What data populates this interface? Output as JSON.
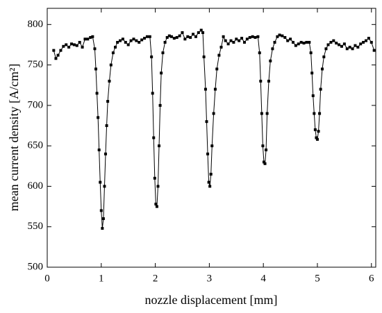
{
  "chart_data": {
    "type": "scatter-line",
    "x_label": "nozzle displacement [mm]",
    "y_label": "mean current density [A/cm²]",
    "xlim": [
      0,
      6.08
    ],
    "xticks": [
      0,
      1,
      2,
      3,
      4,
      5,
      6
    ],
    "ylim": [
      500,
      820
    ],
    "yticks": [
      500,
      550,
      600,
      650,
      700,
      750,
      800
    ],
    "color": "#000000",
    "x": [
      0.12,
      0.16,
      0.2,
      0.25,
      0.3,
      0.35,
      0.4,
      0.45,
      0.5,
      0.55,
      0.6,
      0.65,
      0.7,
      0.75,
      0.8,
      0.84,
      0.88,
      0.9,
      0.92,
      0.94,
      0.96,
      0.98,
      1.0,
      1.02,
      1.04,
      1.06,
      1.08,
      1.1,
      1.12,
      1.15,
      1.18,
      1.22,
      1.26,
      1.3,
      1.35,
      1.4,
      1.45,
      1.5,
      1.55,
      1.6,
      1.65,
      1.7,
      1.75,
      1.8,
      1.85,
      1.9,
      1.93,
      1.95,
      1.97,
      1.99,
      2.01,
      2.03,
      2.05,
      2.07,
      2.09,
      2.11,
      2.14,
      2.18,
      2.22,
      2.26,
      2.3,
      2.35,
      2.4,
      2.45,
      2.5,
      2.55,
      2.6,
      2.65,
      2.7,
      2.75,
      2.8,
      2.85,
      2.88,
      2.9,
      2.93,
      2.95,
      2.97,
      2.99,
      3.01,
      3.03,
      3.05,
      3.08,
      3.11,
      3.14,
      3.18,
      3.22,
      3.26,
      3.3,
      3.35,
      3.4,
      3.45,
      3.5,
      3.55,
      3.6,
      3.65,
      3.7,
      3.75,
      3.8,
      3.85,
      3.9,
      3.93,
      3.95,
      3.97,
      3.99,
      4.01,
      4.03,
      4.05,
      4.07,
      4.1,
      4.13,
      4.17,
      4.21,
      4.26,
      4.3,
      4.35,
      4.4,
      4.45,
      4.5,
      4.55,
      4.6,
      4.65,
      4.7,
      4.75,
      4.8,
      4.85,
      4.88,
      4.9,
      4.92,
      4.94,
      4.96,
      4.98,
      5.0,
      5.02,
      5.04,
      5.06,
      5.09,
      5.12,
      5.16,
      5.2,
      5.25,
      5.3,
      5.35,
      5.4,
      5.45,
      5.5,
      5.55,
      5.6,
      5.65,
      5.7,
      5.75,
      5.8,
      5.85,
      5.9,
      5.95,
      6.0,
      6.05
    ],
    "values": [
      768,
      758,
      762,
      768,
      773,
      775,
      772,
      776,
      775,
      774,
      778,
      772,
      782,
      782,
      784,
      785,
      770,
      745,
      715,
      685,
      645,
      605,
      570,
      548,
      560,
      600,
      640,
      675,
      705,
      730,
      750,
      765,
      772,
      778,
      780,
      782,
      778,
      775,
      780,
      782,
      780,
      778,
      781,
      783,
      785,
      785,
      760,
      715,
      660,
      610,
      578,
      575,
      600,
      650,
      700,
      740,
      765,
      778,
      784,
      786,
      785,
      783,
      784,
      786,
      790,
      782,
      785,
      784,
      788,
      785,
      790,
      793,
      790,
      760,
      720,
      680,
      640,
      605,
      600,
      615,
      650,
      690,
      720,
      745,
      762,
      772,
      785,
      780,
      776,
      780,
      778,
      782,
      780,
      783,
      778,
      782,
      784,
      785,
      784,
      785,
      765,
      730,
      690,
      650,
      630,
      628,
      645,
      690,
      730,
      755,
      770,
      778,
      785,
      787,
      786,
      784,
      780,
      782,
      778,
      774,
      776,
      778,
      777,
      778,
      778,
      765,
      740,
      712,
      690,
      670,
      660,
      658,
      668,
      690,
      720,
      745,
      760,
      770,
      775,
      778,
      780,
      777,
      775,
      773,
      776,
      770,
      772,
      770,
      774,
      772,
      776,
      778,
      780,
      783,
      778,
      768
    ]
  }
}
